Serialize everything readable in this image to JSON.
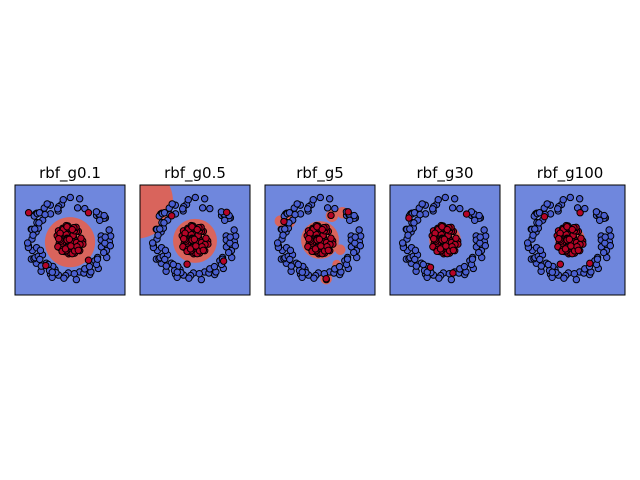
{
  "figure": {
    "background": "#ffffff",
    "colors": {
      "class0_region": "#6f87dd",
      "class1_region": "#d9645c",
      "class0_point": "#4a5fd0",
      "class1_point": "#b40426",
      "point_edge": "#000000",
      "axes_edge": "#000000"
    }
  },
  "chart_data": [
    {
      "type": "scatter",
      "title": "rbf_g0.1",
      "xlabel": "",
      "ylabel": "",
      "ticks": "none",
      "grid": false,
      "legend": "none",
      "background_region": "decision_region_filled",
      "decision_region": {
        "class1_blobs": [
          {
            "x": 0.0,
            "y": -0.05,
            "r": 0.57
          }
        ]
      },
      "series": [
        {
          "class": 0,
          "pattern": "ring",
          "radius": 0.85,
          "count": 90
        },
        {
          "class": 1,
          "pattern": "disk",
          "radius": 0.34,
          "count": 90
        }
      ],
      "outliers": [
        {
          "class": 1,
          "x": -0.94,
          "y": 0.62
        },
        {
          "class": 1,
          "x": 0.42,
          "y": 0.62
        },
        {
          "class": 1,
          "x": 0.42,
          "y": -0.46
        },
        {
          "class": 1,
          "x": -0.55,
          "y": -0.58
        }
      ]
    },
    {
      "type": "scatter",
      "title": "rbf_g0.5",
      "xlabel": "",
      "ylabel": "",
      "ticks": "none",
      "grid": false,
      "legend": "none",
      "background_region": "decision_region_filled",
      "decision_region": {
        "class1_blobs": [
          {
            "x": 0.0,
            "y": -0.02,
            "r": 0.5
          },
          {
            "x": -1.35,
            "y": 0.88,
            "r": 0.85
          }
        ]
      },
      "series": [
        {
          "class": 0,
          "pattern": "ring",
          "radius": 0.85,
          "count": 90
        },
        {
          "class": 1,
          "pattern": "disk",
          "radius": 0.34,
          "count": 90
        }
      ],
      "outliers": [
        {
          "class": 1,
          "x": -0.53,
          "y": 0.55
        },
        {
          "class": 1,
          "x": 0.72,
          "y": 0.63
        },
        {
          "class": 1,
          "x": 0.65,
          "y": -0.48
        },
        {
          "class": 1,
          "x": -0.18,
          "y": -0.55
        }
      ]
    },
    {
      "type": "scatter",
      "title": "rbf_g5",
      "xlabel": "",
      "ylabel": "",
      "ticks": "none",
      "grid": false,
      "legend": "none",
      "background_region": "decision_region_filled",
      "decision_region": {
        "class1_blobs": [
          {
            "x": 0.0,
            "y": 0.0,
            "r": 0.43
          },
          {
            "x": -0.73,
            "y": 0.43,
            "r": 0.17
          },
          {
            "x": -0.9,
            "y": 0.43,
            "r": 0.13
          },
          {
            "x": 0.27,
            "y": 0.55,
            "r": 0.14
          },
          {
            "x": 0.51,
            "y": 0.62,
            "r": 0.13
          },
          {
            "x": 0.46,
            "y": -0.22,
            "r": 0.12
          },
          {
            "x": 0.14,
            "y": -0.88,
            "r": 0.13
          },
          {
            "x": 0.38,
            "y": -0.55,
            "r": 0.1
          }
        ]
      },
      "series": [
        {
          "class": 0,
          "pattern": "ring",
          "radius": 0.85,
          "count": 90
        },
        {
          "class": 1,
          "pattern": "disk",
          "radius": 0.34,
          "count": 90
        }
      ],
      "outliers": [
        {
          "class": 1,
          "x": -0.82,
          "y": 0.42
        },
        {
          "class": 1,
          "x": 0.25,
          "y": 0.56
        },
        {
          "class": 1,
          "x": 0.64,
          "y": 0.64
        },
        {
          "class": 1,
          "x": 0.14,
          "y": -0.88
        }
      ]
    },
    {
      "type": "scatter",
      "title": "rbf_g30",
      "xlabel": "",
      "ylabel": "",
      "ticks": "none",
      "grid": false,
      "legend": "none",
      "background_region": "decision_region_filled",
      "decision_region": {
        "class1_blobs": [
          {
            "x": 0.0,
            "y": 0.0,
            "r": 0.36
          },
          {
            "x": -0.82,
            "y": 0.5,
            "r": 0.07
          },
          {
            "x": 0.49,
            "y": 0.59,
            "r": 0.07
          },
          {
            "x": -0.33,
            "y": -0.62,
            "r": 0.07
          },
          {
            "x": 0.18,
            "y": -0.75,
            "r": 0.07
          }
        ]
      },
      "series": [
        {
          "class": 0,
          "pattern": "ring",
          "radius": 0.85,
          "count": 90
        },
        {
          "class": 1,
          "pattern": "disk",
          "radius": 0.34,
          "count": 90
        }
      ],
      "outliers": [
        {
          "class": 1,
          "x": -0.82,
          "y": 0.5
        },
        {
          "class": 1,
          "x": 0.49,
          "y": 0.59
        },
        {
          "class": 1,
          "x": -0.33,
          "y": -0.62
        },
        {
          "class": 1,
          "x": 0.18,
          "y": -0.75
        }
      ]
    },
    {
      "type": "scatter",
      "title": "rbf_g100",
      "xlabel": "",
      "ylabel": "",
      "ticks": "none",
      "grid": false,
      "legend": "none",
      "background_region": "decision_region_filled",
      "decision_region": {
        "class1_blobs": [
          {
            "x": 0.0,
            "y": 0.0,
            "r": 0.34
          },
          {
            "x": -0.58,
            "y": 0.53,
            "r": 0.05
          },
          {
            "x": 0.23,
            "y": 0.62,
            "r": 0.05
          },
          {
            "x": -0.22,
            "y": -0.55,
            "r": 0.05
          },
          {
            "x": 0.45,
            "y": -0.53,
            "r": 0.05
          }
        ]
      },
      "series": [
        {
          "class": 0,
          "pattern": "ring",
          "radius": 0.85,
          "count": 90
        },
        {
          "class": 1,
          "pattern": "disk",
          "radius": 0.34,
          "count": 90
        }
      ],
      "outliers": [
        {
          "class": 1,
          "x": -0.58,
          "y": 0.53
        },
        {
          "class": 1,
          "x": 0.23,
          "y": 0.62
        },
        {
          "class": 1,
          "x": -0.22,
          "y": -0.55
        },
        {
          "class": 1,
          "x": 0.45,
          "y": -0.53
        }
      ]
    }
  ]
}
